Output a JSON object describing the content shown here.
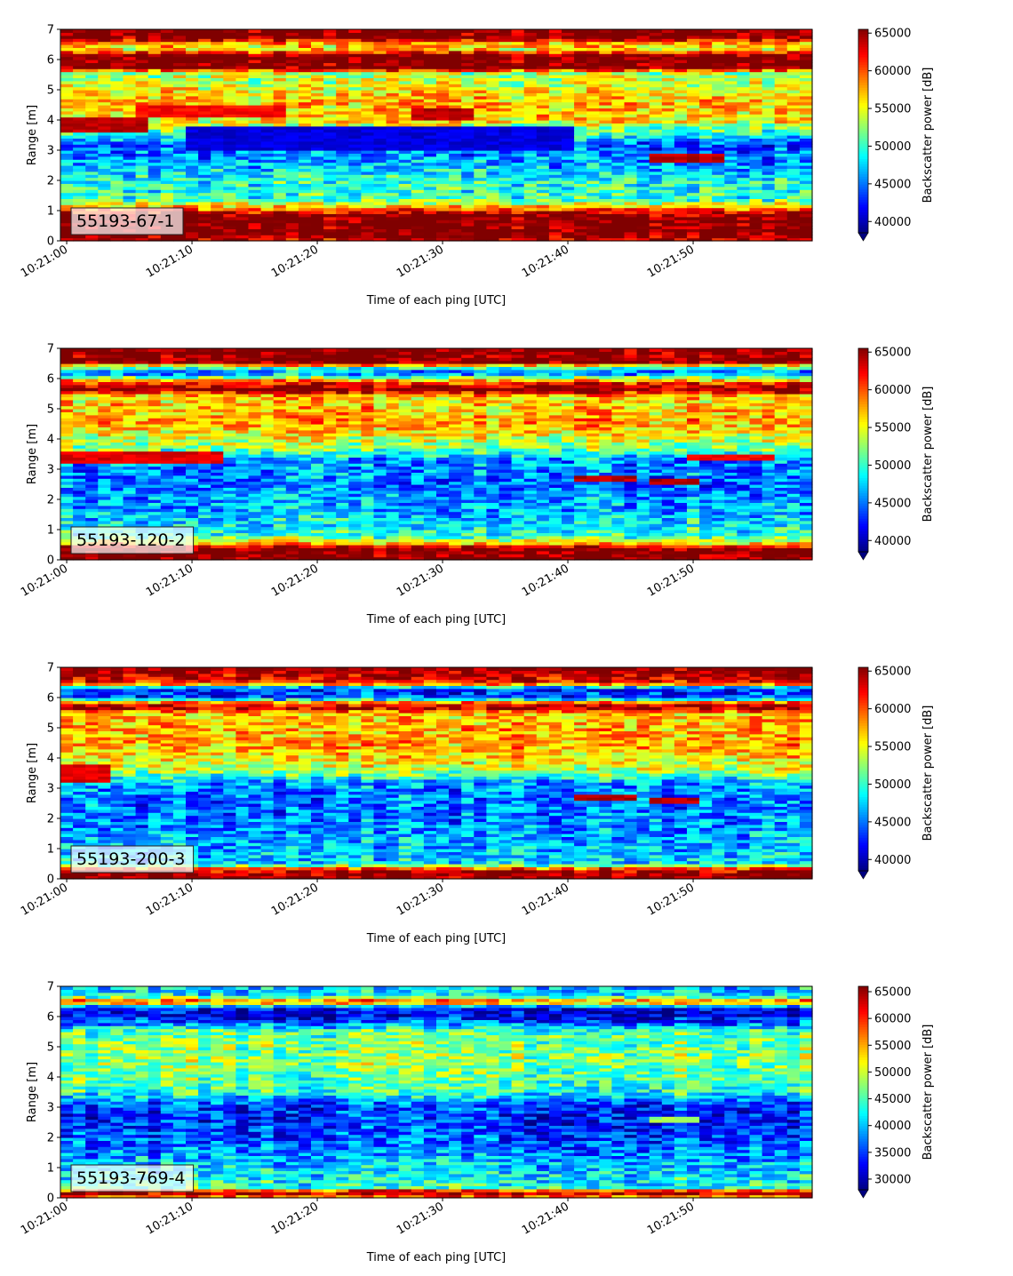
{
  "chart_data": [
    {
      "type": "heatmap",
      "label_box": "55193-67-1",
      "xlabel": "Time of each ping [UTC]",
      "ylabel": "Range [m]",
      "x_ticks": [
        "10:21:00",
        "10:21:10",
        "10:21:20",
        "10:21:30",
        "10:21:40",
        "10:21:50"
      ],
      "x_range_seconds": [
        -0.5,
        59.5
      ],
      "y_ticks": [
        0,
        1,
        2,
        3,
        4,
        5,
        6,
        7
      ],
      "ylim": [
        0,
        7
      ],
      "colorbar": {
        "label": "Backscatter power [dB]",
        "ticks": [
          40000,
          45000,
          50000,
          55000,
          60000,
          65000
        ],
        "vmin": 38500,
        "vmax": 65500,
        "extend": "min",
        "cmap": "jet"
      },
      "profile": [
        {
          "r": 0.0,
          "v": 63000
        },
        {
          "r": 0.2,
          "v": 66000
        },
        {
          "r": 0.8,
          "v": 66000
        },
        {
          "r": 1.0,
          "v": 62000
        },
        {
          "r": 1.15,
          "v": 56000
        },
        {
          "r": 1.4,
          "v": 50000
        },
        {
          "r": 2.0,
          "v": 49000
        },
        {
          "r": 2.6,
          "v": 46000
        },
        {
          "r": 3.2,
          "v": 44000
        },
        {
          "r": 3.6,
          "v": 50000
        },
        {
          "r": 4.0,
          "v": 56000
        },
        {
          "r": 4.6,
          "v": 57000
        },
        {
          "r": 5.2,
          "v": 54000
        },
        {
          "r": 5.6,
          "v": 53000
        },
        {
          "r": 5.7,
          "v": 66000
        },
        {
          "r": 6.2,
          "v": 66000
        },
        {
          "r": 6.3,
          "v": 55000
        },
        {
          "r": 6.6,
          "v": 58000
        },
        {
          "r": 6.7,
          "v": 66000
        },
        {
          "r": 7.0,
          "v": 66000
        }
      ],
      "features": [
        {
          "t0": 0,
          "t1": 6,
          "r0": 3.6,
          "r1": 4.1,
          "v": 64000
        },
        {
          "t0": 6,
          "t1": 17,
          "r0": 4.1,
          "r1": 4.5,
          "v": 62000
        },
        {
          "t0": 28,
          "t1": 32,
          "r0": 4.0,
          "r1": 4.4,
          "v": 64000
        },
        {
          "t0": 47,
          "t1": 52,
          "r0": 2.6,
          "r1": 2.9,
          "v": 64000
        },
        {
          "t0": 10,
          "t1": 40,
          "r0": 3.0,
          "r1": 3.8,
          "v": 41000
        }
      ]
    },
    {
      "type": "heatmap",
      "label_box": "55193-120-2",
      "xlabel": "Time of each ping [UTC]",
      "ylabel": "Range [m]",
      "x_ticks": [
        "10:21:00",
        "10:21:10",
        "10:21:20",
        "10:21:30",
        "10:21:40",
        "10:21:50"
      ],
      "x_range_seconds": [
        -0.5,
        59.5
      ],
      "y_ticks": [
        0,
        1,
        2,
        3,
        4,
        5,
        6,
        7
      ],
      "ylim": [
        0,
        7
      ],
      "colorbar": {
        "label": "Backscatter power [dB]",
        "ticks": [
          40000,
          45000,
          50000,
          55000,
          60000,
          65000
        ],
        "vmin": 38500,
        "vmax": 65500,
        "extend": "min",
        "cmap": "jet"
      },
      "profile": [
        {
          "r": 0.0,
          "v": 66000
        },
        {
          "r": 0.4,
          "v": 66000
        },
        {
          "r": 0.55,
          "v": 57000
        },
        {
          "r": 0.8,
          "v": 50000
        },
        {
          "r": 1.5,
          "v": 47000
        },
        {
          "r": 2.5,
          "v": 45000
        },
        {
          "r": 3.3,
          "v": 46000
        },
        {
          "r": 3.7,
          "v": 52000
        },
        {
          "r": 4.5,
          "v": 58000
        },
        {
          "r": 5.4,
          "v": 56000
        },
        {
          "r": 5.65,
          "v": 66000
        },
        {
          "r": 5.9,
          "v": 60000
        },
        {
          "r": 6.2,
          "v": 44000
        },
        {
          "r": 6.4,
          "v": 52000
        },
        {
          "r": 6.55,
          "v": 66000
        },
        {
          "r": 7.0,
          "v": 66000
        }
      ],
      "features": [
        {
          "t0": 0,
          "t1": 12,
          "r0": 3.2,
          "r1": 3.6,
          "v": 63000
        },
        {
          "t0": 41,
          "t1": 45,
          "r0": 2.6,
          "r1": 2.8,
          "v": 64000
        },
        {
          "t0": 47,
          "t1": 50,
          "r0": 2.5,
          "r1": 2.7,
          "v": 64000
        },
        {
          "t0": 50,
          "t1": 56,
          "r0": 3.35,
          "r1": 3.55,
          "v": 62000
        }
      ]
    },
    {
      "type": "heatmap",
      "label_box": "55193-200-3",
      "xlabel": "Time of each ping [UTC]",
      "ylabel": "Range [m]",
      "x_ticks": [
        "10:21:00",
        "10:21:10",
        "10:21:20",
        "10:21:30",
        "10:21:40",
        "10:21:50"
      ],
      "x_range_seconds": [
        -0.5,
        59.5
      ],
      "y_ticks": [
        0,
        1,
        2,
        3,
        4,
        5,
        6,
        7
      ],
      "ylim": [
        0,
        7
      ],
      "colorbar": {
        "label": "Backscatter power [dB]",
        "ticks": [
          40000,
          45000,
          50000,
          55000,
          60000,
          65000
        ],
        "vmin": 38500,
        "vmax": 65500,
        "extend": "min",
        "cmap": "jet"
      },
      "profile": [
        {
          "r": 0.0,
          "v": 66000
        },
        {
          "r": 0.3,
          "v": 64000
        },
        {
          "r": 0.5,
          "v": 48000
        },
        {
          "r": 1.5,
          "v": 46000
        },
        {
          "r": 2.5,
          "v": 45000
        },
        {
          "r": 3.2,
          "v": 46000
        },
        {
          "r": 3.6,
          "v": 54000
        },
        {
          "r": 4.5,
          "v": 58000
        },
        {
          "r": 5.5,
          "v": 57000
        },
        {
          "r": 5.7,
          "v": 66000
        },
        {
          "r": 5.85,
          "v": 58000
        },
        {
          "r": 6.0,
          "v": 44000
        },
        {
          "r": 6.3,
          "v": 43000
        },
        {
          "r": 6.5,
          "v": 62000
        },
        {
          "r": 7.0,
          "v": 66000
        }
      ],
      "features": [
        {
          "t0": 0,
          "t1": 3,
          "r0": 3.2,
          "r1": 3.8,
          "v": 63000
        },
        {
          "t0": 41,
          "t1": 45,
          "r0": 2.6,
          "r1": 2.8,
          "v": 64000
        },
        {
          "t0": 47,
          "t1": 50,
          "r0": 2.5,
          "r1": 2.7,
          "v": 64000
        }
      ]
    },
    {
      "type": "heatmap",
      "label_box": "55193-769-4",
      "xlabel": "Time of each ping [UTC]",
      "ylabel": "Range [m]",
      "x_ticks": [
        "10:21:00",
        "10:21:10",
        "10:21:20",
        "10:21:30",
        "10:21:40",
        "10:21:50"
      ],
      "x_range_seconds": [
        -0.5,
        59.5
      ],
      "y_ticks": [
        0,
        1,
        2,
        3,
        4,
        5,
        6,
        7
      ],
      "ylim": [
        0,
        7
      ],
      "colorbar": {
        "label": "Backscatter power [dB]",
        "ticks": [
          30000,
          35000,
          40000,
          45000,
          50000,
          55000,
          60000,
          65000
        ],
        "vmin": 28000,
        "vmax": 66000,
        "extend": "min",
        "cmap": "jet"
      },
      "profile": [
        {
          "r": 0.0,
          "v": 52000
        },
        {
          "r": 0.1,
          "v": 62000
        },
        {
          "r": 0.2,
          "v": 66000
        },
        {
          "r": 0.35,
          "v": 44000
        },
        {
          "r": 0.8,
          "v": 42000
        },
        {
          "r": 1.5,
          "v": 38000
        },
        {
          "r": 2.5,
          "v": 34000
        },
        {
          "r": 3.1,
          "v": 35000
        },
        {
          "r": 3.5,
          "v": 44000
        },
        {
          "r": 4.5,
          "v": 48000
        },
        {
          "r": 5.5,
          "v": 46000
        },
        {
          "r": 5.8,
          "v": 36000
        },
        {
          "r": 6.1,
          "v": 31000
        },
        {
          "r": 6.3,
          "v": 33000
        },
        {
          "r": 6.5,
          "v": 60000
        },
        {
          "r": 6.7,
          "v": 42000
        },
        {
          "r": 7.0,
          "v": 40000
        }
      ],
      "features": [
        {
          "t0": 47,
          "t1": 50,
          "r0": 2.5,
          "r1": 2.7,
          "v": 48000
        }
      ]
    }
  ]
}
